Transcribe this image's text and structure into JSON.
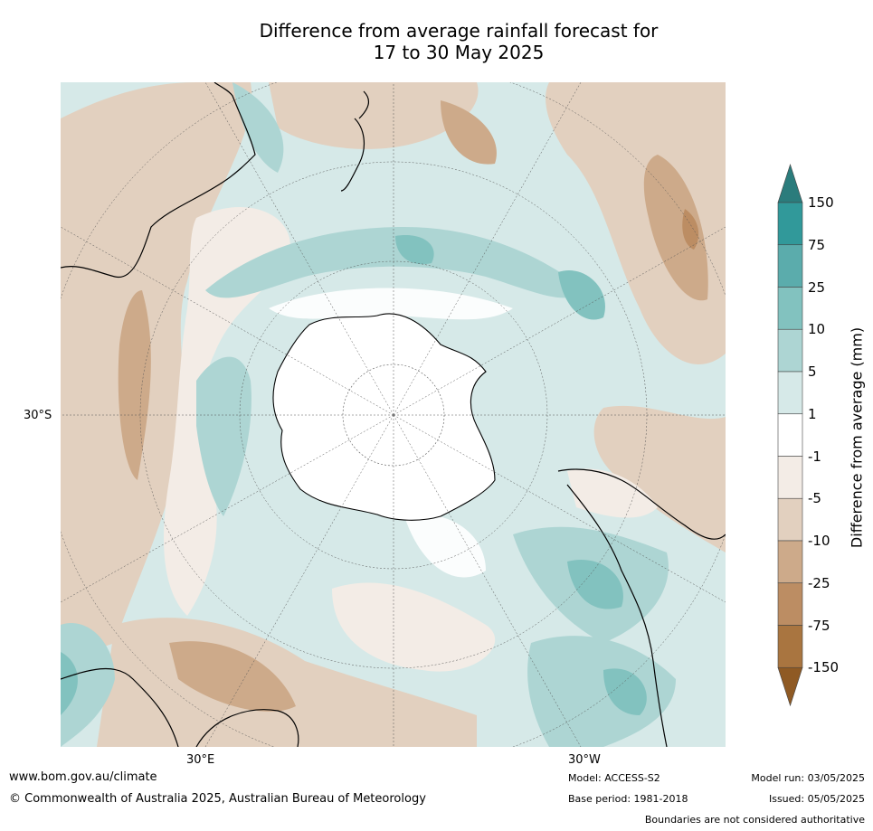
{
  "title": {
    "line1": "Difference from average rainfall forecast for",
    "line2": "17 to 30 May 2025"
  },
  "map": {
    "projection_center": "south-pole",
    "colors": {
      "ocean_light": "#d6e9e8",
      "teal_mid": "#add5d3",
      "teal_deep": "#82c2bf",
      "brown_light": "#f3ece6",
      "brown_mid": "#e2d0bf",
      "brown_deep": "#cdaa8a",
      "brown_dark": "#bc8d63",
      "antarctica": "#ffffff"
    },
    "axis_labels": {
      "lat_left": "30°S",
      "lon_bottom_left": "30°E",
      "lon_bottom_right": "30°W"
    }
  },
  "colorbar": {
    "title": "Difference from average (mm)",
    "ticks": [
      "150",
      "75",
      "25",
      "10",
      "5",
      "1",
      "-1",
      "-5",
      "-10",
      "-25",
      "-75",
      "-150"
    ],
    "colors": [
      "#2b7c7c",
      "#31999a",
      "#5bacac",
      "#82c2bf",
      "#add5d3",
      "#d6e9e8",
      "#ffffff",
      "#f3ece6",
      "#e2d0bf",
      "#cdaa8a",
      "#bc8d63",
      "#a97540",
      "#8f5a24"
    ]
  },
  "footer": {
    "website": "www.bom.gov.au/climate",
    "copyright": "© Commonwealth of Australia 2025, Australian Bureau of Meteorology",
    "model": "Model: ACCESS-S2",
    "base_period": "Base period: 1981-2018",
    "model_run": "Model run: 03/05/2025",
    "issued": "Issued: 05/05/2025",
    "disclaimer": "Boundaries are not considered authoritative"
  }
}
